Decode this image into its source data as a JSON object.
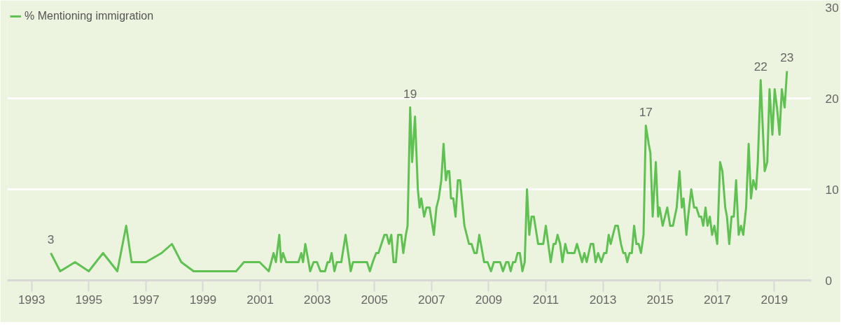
{
  "chart_data": {
    "type": "line",
    "x": [
      1993.67,
      1994.0,
      1994.52,
      1995.0,
      1995.5,
      1996.0,
      1996.31,
      1996.5,
      1997.0,
      1997.55,
      1997.91,
      1998.24,
      1998.67,
      2000.16,
      2000.43,
      2000.98,
      2001.3,
      2001.47,
      2001.55,
      2001.67,
      2001.73,
      2001.8,
      2001.91,
      2002.34,
      2002.44,
      2002.5,
      2002.58,
      2002.75,
      2002.87,
      2002.99,
      2003.11,
      2003.27,
      2003.36,
      2003.43,
      2003.5,
      2003.6,
      2003.68,
      2003.84,
      2003.99,
      2004.17,
      2004.25,
      2004.74,
      2004.84,
      2004.94,
      2005.06,
      2005.14,
      2005.35,
      2005.43,
      2005.51,
      2005.59,
      2005.67,
      2005.75,
      2005.83,
      2005.94,
      2006.01,
      2006.1,
      2006.16,
      2006.25,
      2006.32,
      2006.42,
      2006.52,
      2006.58,
      2006.64,
      2006.74,
      2006.82,
      2006.93,
      2007.08,
      2007.17,
      2007.25,
      2007.34,
      2007.42,
      2007.5,
      2007.56,
      2007.62,
      2007.68,
      2007.76,
      2007.84,
      2007.92,
      2008.0,
      2008.15,
      2008.31,
      2008.4,
      2008.5,
      2008.58,
      2008.67,
      2008.84,
      2008.96,
      2009.08,
      2009.18,
      2009.4,
      2009.5,
      2009.61,
      2009.69,
      2009.77,
      2009.85,
      2009.93,
      2010.01,
      2010.09,
      2010.18,
      2010.26,
      2010.34,
      2010.42,
      2010.5,
      2010.58,
      2010.73,
      2010.91,
      2011.0,
      2011.17,
      2011.27,
      2011.34,
      2011.41,
      2011.5,
      2011.58,
      2011.68,
      2011.76,
      2012.0,
      2012.09,
      2012.27,
      2012.35,
      2012.43,
      2012.57,
      2012.66,
      2012.74,
      2012.83,
      2012.94,
      2013.04,
      2013.12,
      2013.2,
      2013.27,
      2013.35,
      2013.43,
      2013.52,
      2013.63,
      2013.71,
      2013.78,
      2013.85,
      2013.93,
      2014.01,
      2014.09,
      2014.17,
      2014.25,
      2014.33,
      2014.42,
      2014.5,
      2014.6,
      2014.66,
      2014.74,
      2014.85,
      2014.93,
      2014.98,
      2015.09,
      2015.17,
      2015.25,
      2015.35,
      2015.45,
      2015.58,
      2015.68,
      2015.76,
      2015.82,
      2015.92,
      2015.98,
      2016.09,
      2016.19,
      2016.27,
      2016.37,
      2016.44,
      2016.51,
      2016.59,
      2016.66,
      2016.74,
      2016.82,
      2016.9,
      2017.0,
      2017.1,
      2017.18,
      2017.28,
      2017.34,
      2017.42,
      2017.5,
      2017.58,
      2017.66,
      2017.75,
      2017.83,
      2017.91,
      2018.01,
      2018.1,
      2018.18,
      2018.26,
      2018.36,
      2018.42,
      2018.52,
      2018.66,
      2018.75,
      2018.83,
      2018.93,
      2019.01,
      2019.09,
      2019.18,
      2019.26,
      2019.36,
      2019.44
    ],
    "series": [
      {
        "name": "% Mentioning immigration",
        "color": "#5fc152",
        "values": [
          3,
          1,
          2,
          1,
          3,
          1,
          6,
          2,
          2,
          3,
          4,
          2,
          1,
          1,
          2,
          2,
          1,
          3,
          2,
          5,
          2,
          3,
          2,
          2,
          3,
          2,
          4,
          1,
          2,
          2,
          1,
          1,
          2,
          2,
          3,
          1,
          2,
          2,
          5,
          1,
          2,
          2,
          1,
          2,
          3,
          3,
          5,
          5,
          4,
          5,
          2,
          2,
          5,
          5,
          3,
          5,
          6,
          19,
          13,
          18,
          10,
          8,
          9,
          7,
          8,
          8,
          5,
          8,
          9,
          11,
          15,
          11,
          12,
          12,
          9,
          9,
          7,
          11,
          11,
          6,
          4,
          4,
          3,
          3,
          5,
          2,
          2,
          1,
          2,
          2,
          1,
          2,
          2,
          1,
          2,
          2,
          3,
          3,
          1,
          2,
          10,
          5,
          7,
          7,
          4,
          4,
          6,
          2,
          4,
          4,
          5,
          4,
          2,
          4,
          3,
          3,
          4,
          2,
          3,
          2,
          4,
          4,
          2,
          3,
          2,
          3,
          3,
          5,
          4,
          5,
          6,
          6,
          4,
          3,
          3,
          2,
          3,
          3,
          6,
          4,
          4,
          3,
          5,
          17,
          15,
          14,
          7,
          13,
          7,
          8,
          6,
          7,
          8,
          6,
          6,
          8,
          12,
          8,
          9,
          5,
          7,
          10,
          8,
          8,
          7,
          7,
          6,
          8,
          6,
          7,
          5,
          6,
          4,
          13,
          12,
          8,
          7,
          4,
          7,
          7,
          11,
          5,
          6,
          5,
          8,
          15,
          9,
          11,
          10,
          13,
          22,
          12,
          13,
          21,
          16,
          21,
          19,
          16,
          21,
          19,
          23
        ]
      }
    ],
    "xlim": [
      1992.15,
      2020.29
    ],
    "ylim": [
      0,
      30
    ],
    "xticks": [
      1993,
      1995,
      1997,
      1999,
      2001,
      2003,
      2005,
      2007,
      2009,
      2011,
      2013,
      2015,
      2017,
      2019
    ],
    "yticks": [
      0,
      10,
      20,
      30
    ],
    "grid": "y",
    "legend": "top left",
    "marker": "none",
    "line_style": "solid",
    "annotations": [
      {
        "text": "3",
        "x": 1993.67,
        "y": 3
      },
      {
        "text": "19",
        "x": 2006.25,
        "y": 19
      },
      {
        "text": "17",
        "x": 2014.5,
        "y": 17
      },
      {
        "text": "22",
        "x": 2018.52,
        "y": 22
      },
      {
        "text": "23",
        "x": 2019.44,
        "y": 23
      }
    ]
  }
}
